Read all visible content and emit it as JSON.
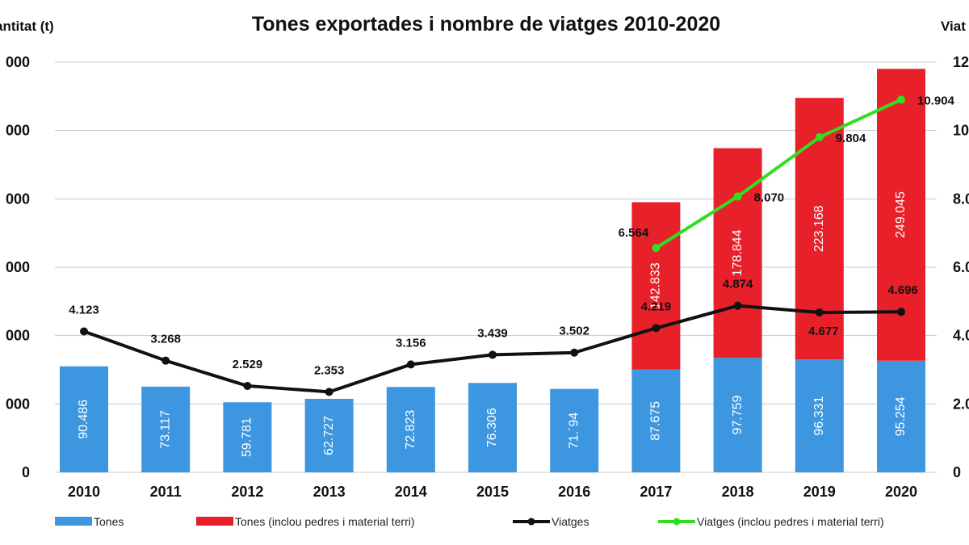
{
  "chart_data": {
    "type": "bar",
    "title": "Tones exportades i nombre de viatges 2010-2020",
    "ylabel_left": "antitat (t)",
    "ylabel_right": "Viat",
    "ylim_left": [
      0,
      350000
    ],
    "ylim_right": [
      0,
      12000
    ],
    "yticks_left": [
      "0",
      "000",
      "000",
      "000",
      "000",
      "000",
      "000"
    ],
    "yticks_right": [
      "0",
      "2.0",
      "4.0",
      "6.0",
      "8.0",
      "10.",
      "12."
    ],
    "categories": [
      "2010",
      "2011",
      "2012",
      "2013",
      "2014",
      "2015",
      "2016",
      "2017",
      "2018",
      "2019",
      "2020"
    ],
    "series": [
      {
        "name": "Tones",
        "kind": "bar",
        "stack": "tones",
        "color": "#3d97e0",
        "values": [
          90486,
          73117,
          59781,
          62727,
          72823,
          76306,
          71194,
          87675,
          97759,
          96331,
          95254
        ],
        "labels": [
          "90.486",
          "73.117",
          "59.781",
          "62.727",
          "72.823",
          "76.306",
          "71.´94",
          "87.675",
          "97.759",
          "96.331",
          "95.254"
        ]
      },
      {
        "name": "Tones (inclou pedres i material terri)",
        "kind": "bar",
        "stack": "tones",
        "color": "#e8202a",
        "values": [
          null,
          null,
          null,
          null,
          null,
          null,
          null,
          142833,
          178844,
          223168,
          249045
        ],
        "labels": [
          "",
          "",
          "",
          "",
          "",
          "",
          "",
          "142.833",
          "178.844",
          "223.168",
          "249.045"
        ]
      },
      {
        "name": "Viatges",
        "kind": "line",
        "axis": "right",
        "color": "#111111",
        "values": [
          4123,
          3268,
          2529,
          2353,
          3156,
          3439,
          3502,
          4219,
          4874,
          4677,
          4696
        ],
        "labels": [
          "4.123",
          "3.268",
          "2.529",
          "2.353",
          "3.156",
          "3.439",
          "3.502",
          "4.219",
          "4.874",
          "4.677",
          "4.696"
        ]
      },
      {
        "name": "Viatges (inclou pedres i material terri)",
        "kind": "line",
        "axis": "right",
        "color": "#33dd22",
        "values": [
          null,
          null,
          null,
          null,
          null,
          null,
          null,
          6564,
          8070,
          9804,
          10904
        ],
        "labels": [
          "",
          "",
          "",
          "",
          "",
          "",
          "",
          "6.564",
          "8.070",
          "9.804",
          "10.904"
        ]
      }
    ],
    "grid": true,
    "legend": "bottom"
  }
}
